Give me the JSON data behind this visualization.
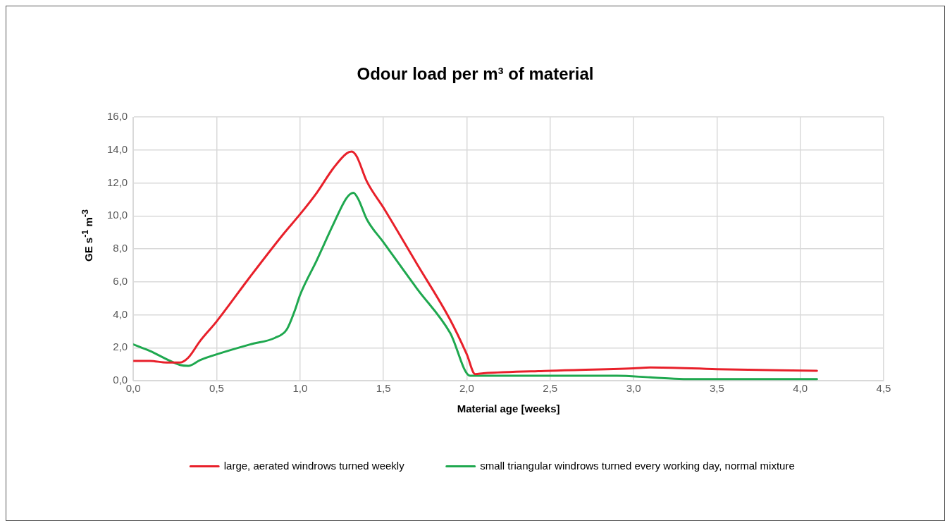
{
  "chart_data": {
    "type": "line",
    "title": "Odour load per m³ of material",
    "xlabel": "Material age [weeks]",
    "ylabel": "GE s$^{-1}$ m$^{-3}$",
    "xlim": [
      0,
      4.5
    ],
    "xticks": [
      {
        "value": 0,
        "label": "0,0"
      },
      {
        "value": 0.5,
        "label": "0,5"
      },
      {
        "value": 1,
        "label": "1,0"
      },
      {
        "value": 1.5,
        "label": "1,5"
      },
      {
        "value": 2,
        "label": "2,0"
      },
      {
        "value": 2.5,
        "label": "2,5"
      },
      {
        "value": 3,
        "label": "3,0"
      },
      {
        "value": 3.5,
        "label": "3,5"
      },
      {
        "value": 4,
        "label": "4,0"
      },
      {
        "value": 4.5,
        "label": "4,5"
      }
    ],
    "ylim": [
      0,
      16
    ],
    "yticks": [
      {
        "value": 0,
        "label": "0,0"
      },
      {
        "value": 2,
        "label": "2,0"
      },
      {
        "value": 4,
        "label": "4,0"
      },
      {
        "value": 6,
        "label": "6,0"
      },
      {
        "value": 8,
        "label": "8,0"
      },
      {
        "value": 10,
        "label": "10,0"
      },
      {
        "value": 12,
        "label": "12,0"
      },
      {
        "value": 14,
        "label": "14,0"
      },
      {
        "value": 16,
        "label": "16,0"
      }
    ],
    "grid": true,
    "legend": "bottom",
    "marker": "none",
    "line_style": "solid",
    "series": [
      {
        "name": "large, aerated windrows turned weekly",
        "color": "#e8202a",
        "x": [
          0,
          0.1,
          0.2,
          0.28,
          0.33,
          0.4,
          0.5,
          0.7,
          0.9,
          1.0,
          1.1,
          1.2,
          1.28,
          1.31,
          1.34,
          1.4,
          1.5,
          1.7,
          1.9,
          2.0,
          2.05,
          2.1,
          2.5,
          3.0,
          3.1,
          3.5,
          4.1
        ],
        "values": [
          1.2,
          1.2,
          1.1,
          1.1,
          1.4,
          2.4,
          3.6,
          6.3,
          8.9,
          10.1,
          11.4,
          12.9,
          13.8,
          13.9,
          13.6,
          12.1,
          10.5,
          7.1,
          3.7,
          1.6,
          0.4,
          0.45,
          0.6,
          0.75,
          0.8,
          0.7,
          0.6
        ]
      },
      {
        "name": "small triangular windrows turned every working day, normal mixture",
        "color": "#1fa84f",
        "x": [
          0,
          0.1,
          0.2,
          0.28,
          0.33,
          0.4,
          0.5,
          0.7,
          0.85,
          0.92,
          0.97,
          1.0,
          1.1,
          1.2,
          1.28,
          1.32,
          1.35,
          1.4,
          1.5,
          1.7,
          1.9,
          2.02,
          2.1,
          2.5,
          2.9,
          3.1,
          3.3,
          4.1
        ],
        "values": [
          2.2,
          1.8,
          1.3,
          0.95,
          0.9,
          1.25,
          1.6,
          2.2,
          2.6,
          3.1,
          4.3,
          5.2,
          7.3,
          9.5,
          11.1,
          11.4,
          11.0,
          9.8,
          8.4,
          5.6,
          2.9,
          0.3,
          0.3,
          0.3,
          0.3,
          0.2,
          0.1,
          0.1
        ]
      }
    ]
  }
}
